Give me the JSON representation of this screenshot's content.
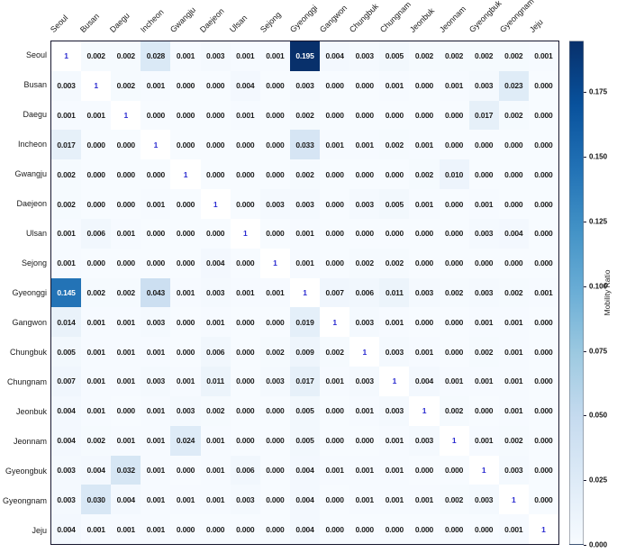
{
  "chart_data": {
    "type": "heatmap",
    "title": "",
    "categories": [
      "Seoul",
      "Busan",
      "Daegu",
      "Incheon",
      "Gwangju",
      "Daejeon",
      "Ulsan",
      "Sejong",
      "Gyeonggi",
      "Gangwon",
      "Chungbuk",
      "Chungnam",
      "Jeonbuk",
      "Jeonnam",
      "Gyeongbuk",
      "Gyeongnam",
      "Jeju"
    ],
    "matrix": [
      [
        "1",
        "0.002",
        "0.002",
        "0.028",
        "0.001",
        "0.003",
        "0.001",
        "0.001",
        "0.195",
        "0.004",
        "0.003",
        "0.005",
        "0.002",
        "0.002",
        "0.002",
        "0.002",
        "0.001"
      ],
      [
        "0.003",
        "1",
        "0.002",
        "0.001",
        "0.000",
        "0.000",
        "0.004",
        "0.000",
        "0.003",
        "0.000",
        "0.000",
        "0.001",
        "0.000",
        "0.001",
        "0.003",
        "0.023",
        "0.000"
      ],
      [
        "0.001",
        "0.001",
        "1",
        "0.000",
        "0.000",
        "0.000",
        "0.001",
        "0.000",
        "0.002",
        "0.000",
        "0.000",
        "0.000",
        "0.000",
        "0.000",
        "0.017",
        "0.002",
        "0.000"
      ],
      [
        "0.017",
        "0.000",
        "0.000",
        "1",
        "0.000",
        "0.000",
        "0.000",
        "0.000",
        "0.033",
        "0.001",
        "0.001",
        "0.002",
        "0.001",
        "0.000",
        "0.000",
        "0.000",
        "0.000"
      ],
      [
        "0.002",
        "0.000",
        "0.000",
        "0.000",
        "1",
        "0.000",
        "0.000",
        "0.000",
        "0.002",
        "0.000",
        "0.000",
        "0.000",
        "0.002",
        "0.010",
        "0.000",
        "0.000",
        "0.000"
      ],
      [
        "0.002",
        "0.000",
        "0.000",
        "0.001",
        "0.000",
        "1",
        "0.000",
        "0.003",
        "0.003",
        "0.000",
        "0.003",
        "0.005",
        "0.001",
        "0.000",
        "0.001",
        "0.000",
        "0.000"
      ],
      [
        "0.001",
        "0.006",
        "0.001",
        "0.000",
        "0.000",
        "0.000",
        "1",
        "0.000",
        "0.001",
        "0.000",
        "0.000",
        "0.000",
        "0.000",
        "0.000",
        "0.003",
        "0.004",
        "0.000"
      ],
      [
        "0.001",
        "0.000",
        "0.000",
        "0.000",
        "0.000",
        "0.004",
        "0.000",
        "1",
        "0.001",
        "0.000",
        "0.002",
        "0.002",
        "0.000",
        "0.000",
        "0.000",
        "0.000",
        "0.000"
      ],
      [
        "0.145",
        "0.002",
        "0.002",
        "0.043",
        "0.001",
        "0.003",
        "0.001",
        "0.001",
        "1",
        "0.007",
        "0.006",
        "0.011",
        "0.003",
        "0.002",
        "0.003",
        "0.002",
        "0.001"
      ],
      [
        "0.014",
        "0.001",
        "0.001",
        "0.003",
        "0.000",
        "0.001",
        "0.000",
        "0.000",
        "0.019",
        "1",
        "0.003",
        "0.001",
        "0.000",
        "0.000",
        "0.001",
        "0.001",
        "0.000"
      ],
      [
        "0.005",
        "0.001",
        "0.001",
        "0.001",
        "0.000",
        "0.006",
        "0.000",
        "0.002",
        "0.009",
        "0.002",
        "1",
        "0.003",
        "0.001",
        "0.000",
        "0.002",
        "0.001",
        "0.000"
      ],
      [
        "0.007",
        "0.001",
        "0.001",
        "0.003",
        "0.001",
        "0.011",
        "0.000",
        "0.003",
        "0.017",
        "0.001",
        "0.003",
        "1",
        "0.004",
        "0.001",
        "0.001",
        "0.001",
        "0.000"
      ],
      [
        "0.004",
        "0.001",
        "0.000",
        "0.001",
        "0.003",
        "0.002",
        "0.000",
        "0.000",
        "0.005",
        "0.000",
        "0.001",
        "0.003",
        "1",
        "0.002",
        "0.000",
        "0.001",
        "0.000"
      ],
      [
        "0.004",
        "0.002",
        "0.001",
        "0.001",
        "0.024",
        "0.001",
        "0.000",
        "0.000",
        "0.005",
        "0.000",
        "0.000",
        "0.001",
        "0.003",
        "1",
        "0.001",
        "0.002",
        "0.000"
      ],
      [
        "0.003",
        "0.004",
        "0.032",
        "0.001",
        "0.000",
        "0.001",
        "0.006",
        "0.000",
        "0.004",
        "0.001",
        "0.001",
        "0.001",
        "0.000",
        "0.000",
        "1",
        "0.003",
        "0.000"
      ],
      [
        "0.003",
        "0.030",
        "0.004",
        "0.001",
        "0.001",
        "0.001",
        "0.003",
        "0.000",
        "0.004",
        "0.000",
        "0.001",
        "0.001",
        "0.001",
        "0.002",
        "0.003",
        "1",
        "0.000"
      ],
      [
        "0.004",
        "0.001",
        "0.001",
        "0.001",
        "0.000",
        "0.000",
        "0.000",
        "0.000",
        "0.004",
        "0.000",
        "0.000",
        "0.000",
        "0.000",
        "0.000",
        "0.000",
        "0.001",
        "1"
      ]
    ],
    "vmin": 0,
    "vmax": 0.195,
    "colormap": "Blues",
    "colormap_stops": [
      [
        0.0,
        "#f7fbff"
      ],
      [
        0.125,
        "#deebf7"
      ],
      [
        0.25,
        "#c6dbef"
      ],
      [
        0.375,
        "#9ecae1"
      ],
      [
        0.5,
        "#6baed6"
      ],
      [
        0.625,
        "#4292c6"
      ],
      [
        0.75,
        "#2171b5"
      ],
      [
        0.875,
        "#08519c"
      ],
      [
        1.0,
        "#08306b"
      ]
    ],
    "diagonal": {
      "display": "1",
      "text_color": "#2a2ad0",
      "background": "#ffffff"
    },
    "cell_text_color_dark": "#1a1a1a",
    "cell_text_color_light": "#ffffff",
    "spine_color": "#16162e",
    "x_tick_rotation": 45,
    "grid": false,
    "legend_position": "right",
    "colorbar": {
      "label": "Mobility Ratio",
      "ticks": [
        "0.000",
        "0.025",
        "0.050",
        "0.075",
        "0.100",
        "0.125",
        "0.150",
        "0.175"
      ],
      "tick_values": [
        0,
        0.025,
        0.05,
        0.075,
        0.1,
        0.125,
        0.15,
        0.175
      ]
    }
  }
}
